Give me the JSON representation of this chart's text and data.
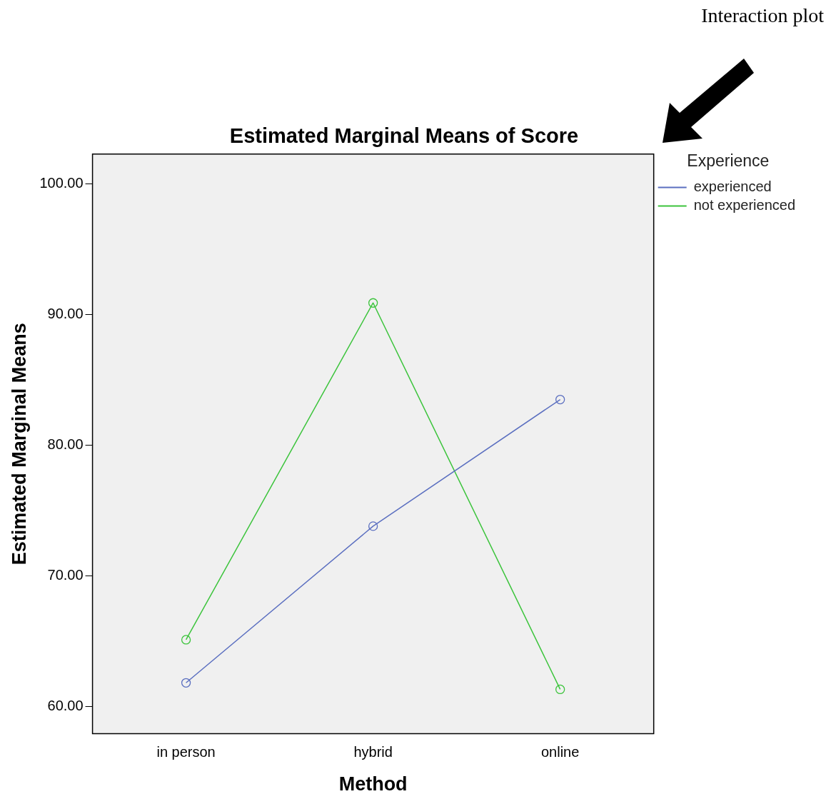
{
  "chart_data": {
    "type": "line",
    "title": "Estimated Marginal Means of Score",
    "xlabel": "Method",
    "ylabel": "Estimated Marginal Means",
    "legend_title": "Experience",
    "annotations": [
      "Interaction plot"
    ],
    "categories": [
      "in person",
      "hybrid",
      "online"
    ],
    "series": [
      {
        "name": "experienced",
        "color": "#5b6fc0",
        "values": [
          61.8,
          73.8,
          83.5
        ]
      },
      {
        "name": "not experienced",
        "color": "#3cc43c",
        "values": [
          65.1,
          90.9,
          61.3
        ]
      }
    ],
    "ylim": [
      57.9,
      102.3
    ],
    "yticks": [
      {
        "value": 60,
        "label": "60.00"
      },
      {
        "value": 70,
        "label": "70.00"
      },
      {
        "value": 80,
        "label": "80.00"
      },
      {
        "value": 90,
        "label": "90.00"
      },
      {
        "value": 100,
        "label": "100.00"
      }
    ],
    "grid": false,
    "legend": "top right",
    "marker": "circle",
    "line_style": "solid"
  }
}
